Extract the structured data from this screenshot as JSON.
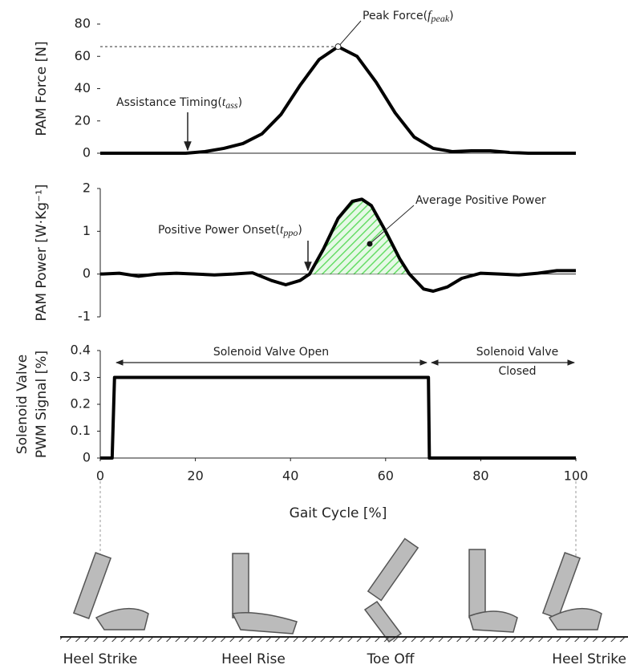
{
  "chart_data": [
    {
      "type": "line",
      "ylabel": "PAM Force [N]",
      "xlim": [
        0,
        100
      ],
      "ylim": [
        0,
        80
      ],
      "yticks": [
        0,
        20,
        40,
        60,
        80
      ],
      "color": "#000000",
      "x": [
        0,
        10,
        18,
        22,
        26,
        30,
        34,
        38,
        42,
        46,
        50,
        54,
        58,
        62,
        66,
        70,
        74,
        78,
        82,
        86,
        90,
        100
      ],
      "values": [
        0,
        0,
        0,
        1,
        3,
        6,
        12,
        24,
        42,
        58,
        66,
        60,
        44,
        25,
        10,
        3,
        1,
        1.5,
        1.5,
        0.5,
        0,
        0
      ],
      "annotations": [
        {
          "text": "Assistance Timing(",
          "symbol": "t",
          "subscript": "ass",
          "close": ")"
        },
        {
          "text": "Peak Force(",
          "symbol": "f",
          "subscript": "peak",
          "close": ")"
        }
      ]
    },
    {
      "type": "line",
      "ylabel": "PAM Power [W·Kg⁻¹]",
      "xlim": [
        0,
        100
      ],
      "ylim": [
        -1,
        2
      ],
      "yticks": [
        -1,
        0,
        1,
        2
      ],
      "color": "#000000",
      "fill_color": "#66dd66",
      "x": [
        0,
        4,
        8,
        12,
        16,
        20,
        24,
        28,
        32,
        36,
        39,
        42,
        44,
        47,
        50,
        53,
        55,
        57,
        60,
        63,
        65,
        68,
        70,
        73,
        76,
        80,
        84,
        88,
        92,
        96,
        100
      ],
      "values": [
        0,
        0.02,
        -0.05,
        0,
        0.02,
        0,
        -0.02,
        0,
        0.03,
        -0.15,
        -0.25,
        -0.15,
        0,
        0.6,
        1.3,
        1.7,
        1.75,
        1.6,
        1.0,
        0.35,
        0,
        -0.35,
        -0.4,
        -0.3,
        -0.1,
        0.02,
        0,
        -0.02,
        0.02,
        0.08,
        0.08
      ],
      "annotations": [
        {
          "text": "Positive Power Onset(",
          "symbol": "t",
          "subscript": "ppo",
          "close": ")"
        },
        {
          "text": "Average Positive Power"
        }
      ]
    },
    {
      "type": "line",
      "ylabel": [
        "Solenoid Valve",
        "PWM Signal [%]"
      ],
      "xlabel": "Gait Cycle [%]",
      "xlim": [
        0,
        100
      ],
      "ylim": [
        0,
        0.4
      ],
      "yticks": [
        0,
        0.1,
        0.2,
        0.3,
        0.4
      ],
      "xticks": [
        0,
        20,
        40,
        60,
        80,
        100
      ],
      "color": "#000000",
      "x": [
        0,
        2.5,
        3,
        69,
        69.2,
        100
      ],
      "values": [
        0,
        0,
        0.3,
        0.3,
        0,
        0
      ],
      "annotations": [
        {
          "text": "Solenoid Valve Open"
        },
        {
          "lines": [
            "Solenoid Valve",
            "Closed"
          ]
        }
      ]
    }
  ],
  "illustration": {
    "labels": [
      "Heel Strike",
      "Heel Rise",
      "Toe Off",
      "Heel Strike"
    ]
  }
}
